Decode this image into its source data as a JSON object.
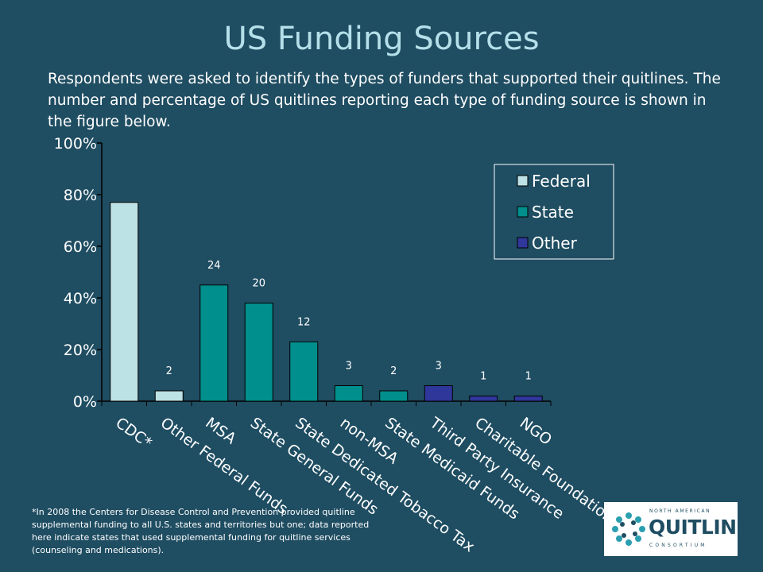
{
  "slide": {
    "title": "US Funding Sources",
    "intro": "Respondents were asked to identify the types of funders that supported their quitlines. The number and percentage of US quitlines reporting each type of funding source is shown in the figure below.",
    "footnote": "*In 2008 the Centers for Disease Control and Prevention provided quitline supplemental funding to all U.S. states and territories but one; data reported here indicate states that used supplemental funding for quitline services (counseling and medications)."
  },
  "logo": {
    "top_text": "NORTH AMERICAN",
    "main_text": "QUITLINE",
    "bottom_text": "CONSORTIUM",
    "icon": "pinwheel-logo-icon"
  },
  "chart_data": {
    "type": "bar",
    "categories": [
      "CDC*",
      "Other Federal Funds",
      "MSA",
      "State General Funds",
      "State Dedicated Tobacco Tax",
      "non-MSA",
      "State Medicaid Funds",
      "Third Party Insurance",
      "Charitable Foundation",
      "NGO"
    ],
    "values": [
      77,
      4,
      45,
      38,
      23,
      6,
      4,
      6,
      2,
      2
    ],
    "data_labels": [
      "",
      "2",
      "24",
      "20",
      "12",
      "3",
      "2",
      "3",
      "1",
      "1"
    ],
    "groups": [
      "Federal",
      "Federal",
      "State",
      "State",
      "State",
      "State",
      "State",
      "Other",
      "Other",
      "Other"
    ],
    "legend": [
      {
        "name": "Federal",
        "color": "#bde2e6"
      },
      {
        "name": "State",
        "color": "#008f8c"
      },
      {
        "name": "Other",
        "color": "#30379a"
      }
    ],
    "y_ticks": [
      "0%",
      "20%",
      "40%",
      "60%",
      "80%",
      "100%"
    ],
    "ylim": [
      0,
      100
    ],
    "legend_position": "top-right",
    "grid": false
  }
}
